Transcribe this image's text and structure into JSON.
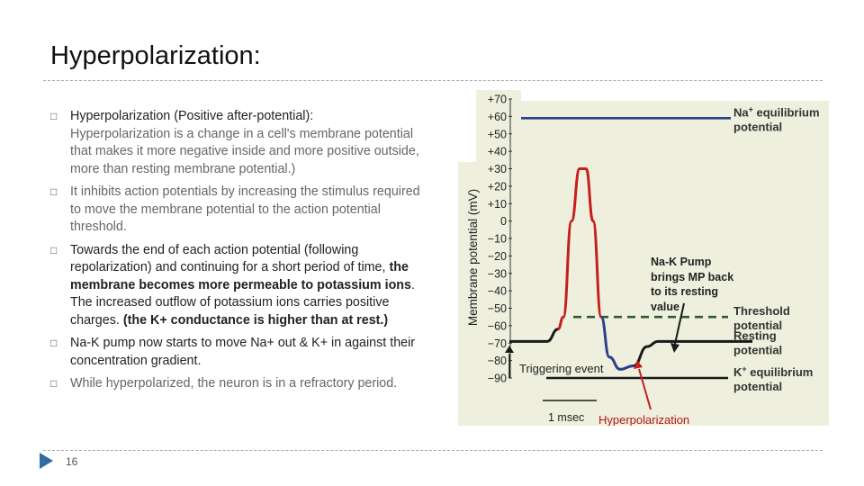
{
  "slide": {
    "title": "Hyperpolarization:",
    "number": "16"
  },
  "bullets": [
    {
      "heading": "Hyperpolarization (Positive after-potential):",
      "body": "Hyperpolarization is a change in a cell's membrane potential that makes it more negative inside and more positive outside, more than resting membrane potential.)"
    },
    {
      "body": " It inhibits action potentials by increasing the stimulus required to move the membrane potential to the action potential threshold."
    },
    {
      "part1": "Towards the end of each action potential (following repolarization) and continuing for a short period of time, ",
      "bold1": "the membrane becomes more permeable to potassium ions",
      "part2": ". The increased outflow of potassium ions carries positive charges. ",
      "bold2": "(the K+ conductance is higher than at rest.)"
    },
    {
      "body": "Na-K pump now starts to move Na+ out & K+ in against their concentration gradient."
    },
    {
      "body": "While hyperpolarized, the neuron is in a refractory period."
    }
  ],
  "chart_data": {
    "type": "line",
    "ylabel": "Membrane potential (mV)",
    "yticks": [
      "+70",
      "+60",
      "+50",
      "+40",
      "+30",
      "+20",
      "+10",
      "0",
      "−10",
      "−20",
      "−30",
      "−40",
      "−50",
      "−60",
      "−70",
      "−80",
      "−90"
    ],
    "ylim": [
      -90,
      70
    ],
    "reference_lines": [
      {
        "label_main": "Na",
        "label_sup": "+",
        "label_rest": " equilibrium",
        "label_line2": "potential",
        "y": 59,
        "color": "#2a3f8f",
        "style": "solid"
      },
      {
        "label_main": "Threshold",
        "label_line2": "potential",
        "y": -55,
        "color": "#2f5a2f",
        "style": "dashed"
      },
      {
        "label_main": "Resting",
        "label_line2": "potential",
        "y": -69,
        "color": "#1a1a1a",
        "style": "solid"
      },
      {
        "label_main": "K",
        "label_sup": "+",
        "label_rest": " equilibrium",
        "label_line2": "potential",
        "y": -90,
        "color": "#1a1a1a",
        "style": "solid"
      }
    ],
    "trace": [
      {
        "t": 0.0,
        "v": -69
      },
      {
        "t": 0.7,
        "v": -69
      },
      {
        "t": 0.9,
        "v": -62
      },
      {
        "t": 1.0,
        "v": -55
      },
      {
        "t": 1.15,
        "v": 0
      },
      {
        "t": 1.3,
        "v": 30
      },
      {
        "t": 1.42,
        "v": 30
      },
      {
        "t": 1.55,
        "v": 0
      },
      {
        "t": 1.7,
        "v": -55
      },
      {
        "t": 1.85,
        "v": -78
      },
      {
        "t": 2.05,
        "v": -85
      },
      {
        "t": 2.3,
        "v": -83
      },
      {
        "t": 2.55,
        "v": -72
      },
      {
        "t": 2.75,
        "v": -69
      },
      {
        "t": 4.5,
        "v": -69
      }
    ],
    "annotations": {
      "triggering_event": "Triggering event",
      "time_scale": "1 msec",
      "pump_note": [
        "Na-K Pump",
        "brings MP back",
        "to its resting",
        "value"
      ],
      "hyper_label": "Hyperpolarization"
    },
    "colors": {
      "background": "#eef0dd",
      "trace_depolarization": "#c41e1e",
      "trace_repolarization": "#2a3f8f",
      "trace_rest": "#1a1a1a",
      "arrow_red": "#c41e1e",
      "hyper_label": "#b01818"
    }
  }
}
